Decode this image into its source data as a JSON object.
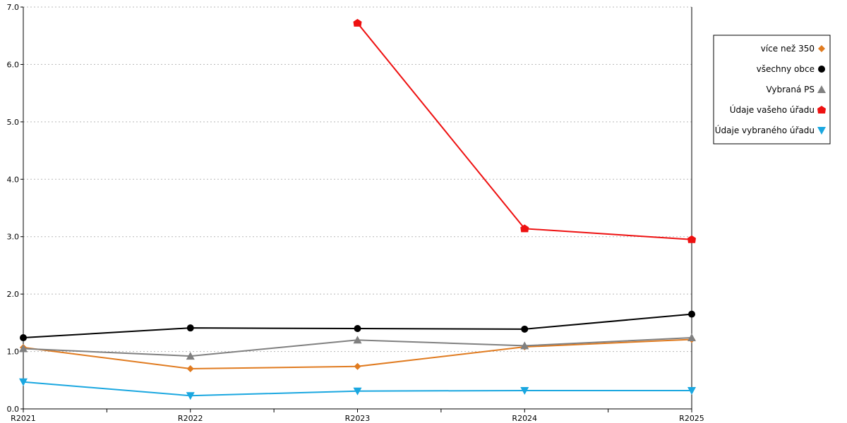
{
  "chart_data": {
    "type": "line",
    "title": "",
    "xlabel": "",
    "ylabel": "",
    "categories": [
      "R2021",
      "R2022",
      "R2023",
      "R2024",
      "R2025"
    ],
    "ylim": [
      0,
      7
    ],
    "yticks": [
      "0.0",
      "1.0",
      "2.0",
      "3.0",
      "4.0",
      "5.0",
      "6.0",
      "7.0"
    ],
    "grid": "horizontal dotted",
    "legend_position": "right",
    "series": [
      {
        "name": "více než 350",
        "color": "#e07b20",
        "marker": "diamond",
        "values": [
          1.07,
          0.7,
          0.74,
          1.08,
          1.21
        ]
      },
      {
        "name": "všechny obce",
        "color": "#000000",
        "marker": "circle",
        "values": [
          1.24,
          1.41,
          1.4,
          1.39,
          1.65
        ]
      },
      {
        "name": "Vybraná PS",
        "color": "#808080",
        "marker": "triangle-up",
        "values": [
          1.05,
          0.92,
          1.2,
          1.1,
          1.24
        ]
      },
      {
        "name": "Údaje vašeho úřadu",
        "color": "#ee1111",
        "marker": "pentagon",
        "values": [
          null,
          null,
          6.72,
          3.14,
          2.95
        ]
      },
      {
        "name": "Údaje vybraného úřadu",
        "color": "#1aa7e0",
        "marker": "triangle-down",
        "values": [
          0.47,
          0.23,
          0.31,
          0.32,
          0.32
        ]
      }
    ]
  }
}
